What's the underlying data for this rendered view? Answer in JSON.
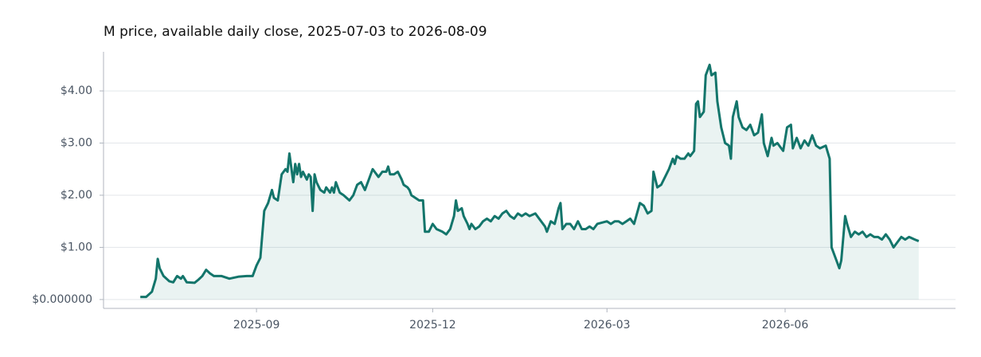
{
  "chart_data": {
    "type": "line",
    "title": "M price, available daily close, 2025-07-03 to 2026-08-09",
    "x": [
      "2025-07-03",
      "2025-07-06",
      "2025-07-09",
      "2025-07-11",
      "2025-07-12",
      "2025-07-13",
      "2025-07-15",
      "2025-07-18",
      "2025-07-20",
      "2025-07-22",
      "2025-07-24",
      "2025-07-25",
      "2025-07-27",
      "2025-07-31",
      "2025-08-02",
      "2025-08-04",
      "2025-08-06",
      "2025-08-08",
      "2025-08-10",
      "2025-08-14",
      "2025-08-18",
      "2025-08-23",
      "2025-08-27",
      "2025-08-30",
      "2025-09-01",
      "2025-09-03",
      "2025-09-05",
      "2025-09-07",
      "2025-09-09",
      "2025-09-10",
      "2025-09-12",
      "2025-09-14",
      "2025-09-16",
      "2025-09-17",
      "2025-09-18",
      "2025-09-20",
      "2025-09-21",
      "2025-09-22",
      "2025-09-23",
      "2025-09-24",
      "2025-09-25",
      "2025-09-27",
      "2025-09-28",
      "2025-09-29",
      "2025-09-30",
      "2025-10-01",
      "2025-10-02",
      "2025-10-04",
      "2025-10-06",
      "2025-10-07",
      "2025-10-09",
      "2025-10-10",
      "2025-10-11",
      "2025-10-12",
      "2025-10-14",
      "2025-10-16",
      "2025-10-19",
      "2025-10-21",
      "2025-10-23",
      "2025-10-25",
      "2025-10-27",
      "2025-10-29",
      "2025-10-31",
      "2025-11-01",
      "2025-11-03",
      "2025-11-05",
      "2025-11-07",
      "2025-11-08",
      "2025-11-09",
      "2025-11-11",
      "2025-11-13",
      "2025-11-15",
      "2025-11-16",
      "2025-11-18",
      "2025-11-19",
      "2025-11-20",
      "2025-11-22",
      "2025-11-24",
      "2025-11-26",
      "2025-11-27",
      "2025-11-29",
      "2025-12-01",
      "2025-12-03",
      "2025-12-06",
      "2025-12-08",
      "2025-12-10",
      "2025-12-12",
      "2025-12-13",
      "2025-12-14",
      "2025-12-16",
      "2025-12-17",
      "2025-12-19",
      "2025-12-20",
      "2025-12-21",
      "2025-12-23",
      "2025-12-25",
      "2025-12-27",
      "2025-12-29",
      "2025-12-31",
      "2026-01-02",
      "2026-01-04",
      "2026-01-06",
      "2026-01-08",
      "2026-01-10",
      "2026-01-12",
      "2026-01-14",
      "2026-01-16",
      "2026-01-18",
      "2026-01-20",
      "2026-01-23",
      "2026-01-25",
      "2026-01-28",
      "2026-01-29",
      "2026-01-31",
      "2026-02-02",
      "2026-02-04",
      "2026-02-05",
      "2026-02-06",
      "2026-02-08",
      "2026-02-10",
      "2026-02-12",
      "2026-02-14",
      "2026-02-16",
      "2026-02-18",
      "2026-02-20",
      "2026-02-22",
      "2026-02-24",
      "2026-03-01",
      "2026-03-03",
      "2026-03-05",
      "2026-03-07",
      "2026-03-09",
      "2026-03-11",
      "2026-03-13",
      "2026-03-15",
      "2026-03-18",
      "2026-03-20",
      "2026-03-22",
      "2026-03-24",
      "2026-03-25",
      "2026-03-27",
      "2026-03-29",
      "2026-03-31",
      "2026-04-02",
      "2026-04-04",
      "2026-04-05",
      "2026-04-06",
      "2026-04-08",
      "2026-04-10",
      "2026-04-12",
      "2026-04-13",
      "2026-04-15",
      "2026-04-16",
      "2026-04-17",
      "2026-04-18",
      "2026-04-20",
      "2026-04-21",
      "2026-04-23",
      "2026-04-24",
      "2026-04-26",
      "2026-04-27",
      "2026-04-29",
      "2026-05-01",
      "2026-05-03",
      "2026-05-04",
      "2026-05-05",
      "2026-05-07",
      "2026-05-08",
      "2026-05-10",
      "2026-05-12",
      "2026-05-14",
      "2026-05-16",
      "2026-05-18",
      "2026-05-20",
      "2026-05-21",
      "2026-05-23",
      "2026-05-25",
      "2026-05-26",
      "2026-05-28",
      "2026-05-31",
      "2026-06-02",
      "2026-06-04",
      "2026-06-05",
      "2026-06-07",
      "2026-06-09",
      "2026-06-11",
      "2026-06-13",
      "2026-06-15",
      "2026-06-17",
      "2026-06-19",
      "2026-06-22",
      "2026-06-24",
      "2026-06-25",
      "2026-06-27",
      "2026-06-29",
      "2026-06-30",
      "2026-07-02",
      "2026-07-03",
      "2026-07-05",
      "2026-07-07",
      "2026-07-09",
      "2026-07-11",
      "2026-07-13",
      "2026-07-15",
      "2026-07-17",
      "2026-07-19",
      "2026-07-21",
      "2026-07-23",
      "2026-07-25",
      "2026-07-27",
      "2026-07-29",
      "2026-07-31",
      "2026-08-02",
      "2026-08-04",
      "2026-08-07",
      "2026-08-09"
    ],
    "series": [
      {
        "color": "#13756b",
        "values": [
          0.05,
          0.05,
          0.15,
          0.4,
          0.78,
          0.6,
          0.45,
          0.35,
          0.33,
          0.45,
          0.4,
          0.45,
          0.33,
          0.32,
          0.38,
          0.45,
          0.57,
          0.5,
          0.45,
          0.45,
          0.4,
          0.44,
          0.45,
          0.45,
          0.65,
          0.8,
          1.7,
          1.85,
          2.1,
          1.95,
          1.9,
          2.4,
          2.5,
          2.45,
          2.8,
          2.25,
          2.6,
          2.4,
          2.6,
          2.35,
          2.45,
          2.3,
          2.4,
          2.35,
          1.7,
          2.4,
          2.25,
          2.1,
          2.05,
          2.15,
          2.05,
          2.15,
          2.05,
          2.25,
          2.05,
          2.0,
          1.9,
          2.0,
          2.2,
          2.25,
          2.1,
          2.3,
          2.5,
          2.45,
          2.35,
          2.45,
          2.45,
          2.55,
          2.4,
          2.4,
          2.45,
          2.3,
          2.2,
          2.15,
          2.1,
          2.0,
          1.95,
          1.9,
          1.9,
          1.3,
          1.3,
          1.45,
          1.35,
          1.3,
          1.25,
          1.35,
          1.6,
          1.9,
          1.7,
          1.75,
          1.6,
          1.45,
          1.35,
          1.45,
          1.35,
          1.4,
          1.5,
          1.55,
          1.5,
          1.6,
          1.55,
          1.65,
          1.7,
          1.6,
          1.55,
          1.65,
          1.6,
          1.65,
          1.6,
          1.65,
          1.55,
          1.4,
          1.3,
          1.5,
          1.45,
          1.75,
          1.85,
          1.35,
          1.45,
          1.45,
          1.35,
          1.5,
          1.35,
          1.35,
          1.4,
          1.35,
          1.45,
          1.5,
          1.45,
          1.5,
          1.5,
          1.45,
          1.5,
          1.55,
          1.45,
          1.85,
          1.8,
          1.65,
          1.7,
          2.45,
          2.15,
          2.2,
          2.35,
          2.5,
          2.7,
          2.6,
          2.75,
          2.7,
          2.7,
          2.8,
          2.75,
          2.85,
          3.75,
          3.8,
          3.5,
          3.6,
          4.3,
          4.5,
          4.3,
          4.35,
          3.8,
          3.3,
          3.0,
          2.95,
          2.7,
          3.5,
          3.8,
          3.5,
          3.3,
          3.25,
          3.35,
          3.15,
          3.2,
          3.55,
          3.0,
          2.75,
          3.1,
          2.95,
          3.0,
          2.85,
          3.3,
          3.35,
          2.9,
          3.1,
          2.9,
          3.05,
          2.95,
          3.15,
          2.95,
          2.9,
          2.95,
          2.7,
          1.0,
          0.8,
          0.6,
          0.75,
          1.6,
          1.45,
          1.2,
          1.3,
          1.25,
          1.3,
          1.2,
          1.25,
          1.2,
          1.2,
          1.15,
          1.25,
          1.15,
          1.0,
          1.1,
          1.2,
          1.15,
          1.2,
          1.15,
          1.12
        ]
      }
    ],
    "xlim": [
      "2025-06-14",
      "2026-08-28"
    ],
    "xticks": [
      {
        "value": "2025-09-01",
        "label": "2025-09"
      },
      {
        "value": "2025-12-01",
        "label": "2025-12"
      },
      {
        "value": "2026-03-01",
        "label": "2026-03"
      },
      {
        "value": "2026-06-01",
        "label": "2026-06"
      }
    ],
    "ylim": [
      -0.17,
      4.75
    ],
    "yticks": [
      {
        "value": 0,
        "label": "$0.000000"
      },
      {
        "value": 1,
        "label": "$1.00"
      },
      {
        "value": 2,
        "label": "$2.00"
      },
      {
        "value": 3,
        "label": "$3.00"
      },
      {
        "value": 4,
        "label": "$4.00"
      }
    ],
    "grid": true
  }
}
